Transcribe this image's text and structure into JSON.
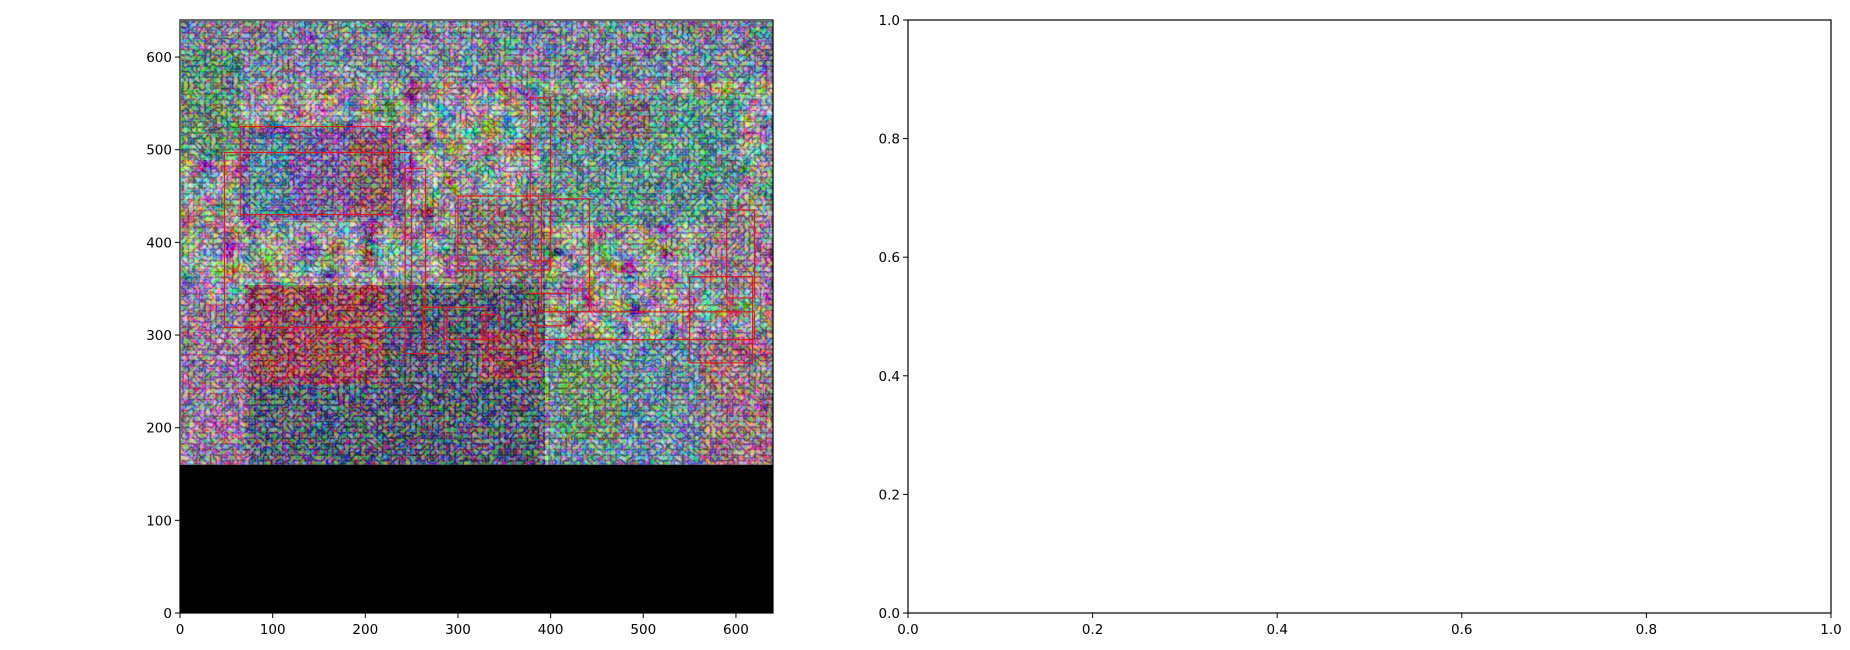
{
  "chart_data": [
    {
      "type": "image",
      "xlim": [
        0,
        640
      ],
      "ylim": [
        640,
        0
      ],
      "x_ticks": [
        "0",
        "100",
        "200",
        "300",
        "400",
        "500",
        "600"
      ],
      "y_ticks": [
        "0",
        "100",
        "200",
        "300",
        "400",
        "500",
        "600"
      ],
      "image": {
        "description": "false-color segmentation-style visualization of an indoor studio / lounge scene",
        "content_height": 480,
        "padding_color": "#000000"
      },
      "boxes": [
        {
          "label": "",
          "x0": 48,
          "y0": 143,
          "x1": 250,
          "y1": 332
        },
        {
          "label": "",
          "x0": 65,
          "y0": 115,
          "x1": 228,
          "y1": 210
        },
        {
          "label": "",
          "x0": 243,
          "y0": 160,
          "x1": 265,
          "y1": 360
        },
        {
          "label": "",
          "x0": 262,
          "y0": 310,
          "x1": 285,
          "y1": 360
        },
        {
          "label": "",
          "x0": 300,
          "y0": 190,
          "x1": 400,
          "y1": 270
        },
        {
          "label": "",
          "x0": 288,
          "y0": 310,
          "x1": 330,
          "y1": 345
        },
        {
          "label": "",
          "x0": 326,
          "y0": 318,
          "x1": 345,
          "y1": 345
        },
        {
          "label": "",
          "x0": 378,
          "y0": 84,
          "x1": 400,
          "y1": 260
        },
        {
          "label": "",
          "x0": 390,
          "y0": 193,
          "x1": 442,
          "y1": 315
        },
        {
          "label": "",
          "x0": 378,
          "y0": 295,
          "x1": 420,
          "y1": 330
        },
        {
          "label": "",
          "x0": 385,
          "y0": 315,
          "x1": 620,
          "y1": 345
        },
        {
          "label": "",
          "x0": 550,
          "y0": 277,
          "x1": 618,
          "y1": 370
        },
        {
          "label": "",
          "x0": 590,
          "y0": 205,
          "x1": 620,
          "y1": 300
        }
      ],
      "box_color": "#e0191f"
    },
    {
      "type": "empty",
      "xlim": [
        0,
        1
      ],
      "ylim": [
        0,
        1
      ],
      "x_ticks": [
        "0.0",
        "0.2",
        "0.4",
        "0.6",
        "0.8",
        "1.0"
      ],
      "y_ticks": [
        "0.0",
        "0.2",
        "0.4",
        "0.6",
        "0.8",
        "1.0"
      ]
    }
  ]
}
